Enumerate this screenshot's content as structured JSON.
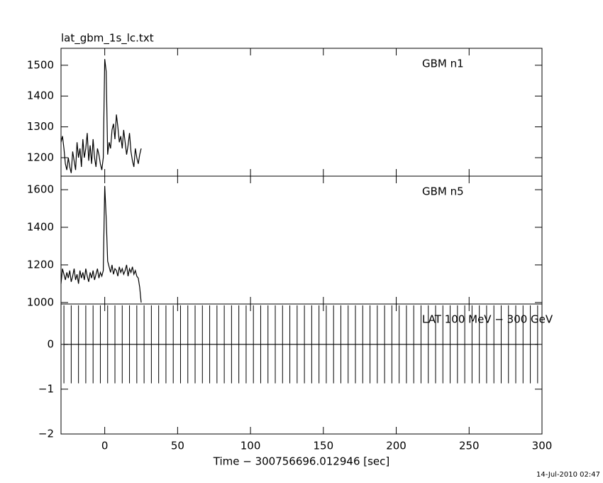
{
  "timestamp": "14-Jul-2010 02:47",
  "chart_data": [
    {
      "type": "line",
      "title": "lat_gbm_1s_lc.txt",
      "xlim": [
        -30,
        300
      ],
      "xticks": [
        0,
        50,
        100,
        150,
        200,
        250,
        300
      ],
      "ylim": [
        1140,
        1555
      ],
      "yticks": [
        1200,
        1300,
        1400,
        1500
      ],
      "x": [
        -30,
        -29,
        -28,
        -27,
        -26,
        -25,
        -24,
        -23,
        -22,
        -21,
        -20,
        -19,
        -18,
        -17,
        -16,
        -15,
        -14,
        -13,
        -12,
        -11,
        -10,
        -9,
        -8,
        -7,
        -6,
        -5,
        -4,
        -3,
        -2,
        -1,
        0,
        1,
        2,
        3,
        4,
        5,
        6,
        7,
        8,
        9,
        10,
        11,
        12,
        13,
        14,
        15,
        16,
        17,
        18,
        19,
        20,
        21,
        22,
        23,
        24,
        25
      ],
      "series": [
        {
          "name": "GBM n1",
          "color": "#000000",
          "values": [
            1250,
            1270,
            1230,
            1180,
            1160,
            1200,
            1170,
            1150,
            1220,
            1190,
            1160,
            1250,
            1200,
            1230,
            1170,
            1260,
            1200,
            1230,
            1280,
            1190,
            1240,
            1180,
            1260,
            1200,
            1170,
            1230,
            1210,
            1180,
            1160,
            1200,
            1520,
            1480,
            1210,
            1250,
            1230,
            1290,
            1310,
            1260,
            1340,
            1300,
            1250,
            1270,
            1230,
            1290,
            1250,
            1210,
            1240,
            1280,
            1220,
            1190,
            1170,
            1230,
            1200,
            1180,
            1210,
            1230
          ]
        }
      ]
    },
    {
      "type": "line",
      "xlim": [
        -30,
        300
      ],
      "xticks": [
        0,
        50,
        100,
        150,
        200,
        250,
        300
      ],
      "ylim": [
        992,
        1672
      ],
      "yticks": [
        1000,
        1200,
        1400,
        1600
      ],
      "x": [
        -30,
        -29,
        -28,
        -27,
        -26,
        -25,
        -24,
        -23,
        -22,
        -21,
        -20,
        -19,
        -18,
        -17,
        -16,
        -15,
        -14,
        -13,
        -12,
        -11,
        -10,
        -9,
        -8,
        -7,
        -6,
        -5,
        -4,
        -3,
        -2,
        -1,
        0,
        1,
        2,
        3,
        4,
        5,
        6,
        7,
        8,
        9,
        10,
        11,
        12,
        13,
        14,
        15,
        16,
        17,
        18,
        19,
        20,
        21,
        22,
        23,
        24,
        25
      ],
      "series": [
        {
          "name": "GBM n5",
          "color": "#000000",
          "values": [
            1100,
            1180,
            1150,
            1120,
            1160,
            1130,
            1170,
            1110,
            1140,
            1180,
            1120,
            1150,
            1100,
            1170,
            1130,
            1160,
            1120,
            1180,
            1140,
            1110,
            1160,
            1130,
            1170,
            1120,
            1150,
            1180,
            1130,
            1160,
            1140,
            1170,
            1620,
            1450,
            1220,
            1190,
            1160,
            1200,
            1150,
            1180,
            1170,
            1140,
            1190,
            1160,
            1180,
            1150,
            1170,
            1200,
            1140,
            1180,
            1160,
            1190,
            1150,
            1170,
            1140,
            1130,
            1080,
            1000
          ]
        }
      ]
    },
    {
      "type": "errorbar",
      "xlabel": "Time − 300756696.012946 [sec]",
      "xlim": [
        -30,
        300
      ],
      "xticks": [
        0,
        50,
        100,
        150,
        200,
        250,
        300
      ],
      "ylim": [
        -2,
        0.9
      ],
      "yticks": [
        {
          "value": -2,
          "label": "−2"
        },
        {
          "value": -1,
          "label": "−1"
        },
        0
      ],
      "x": [
        -28,
        -23,
        -18,
        -13,
        -8,
        -3,
        2,
        7,
        12,
        17,
        22,
        27,
        32,
        37,
        42,
        47,
        52,
        57,
        62,
        67,
        72,
        77,
        82,
        87,
        92,
        97,
        102,
        107,
        112,
        117,
        122,
        127,
        132,
        137,
        142,
        147,
        152,
        157,
        162,
        167,
        172,
        177,
        182,
        187,
        192,
        197,
        202,
        207,
        212,
        217,
        222,
        227,
        232,
        237,
        242,
        247,
        252,
        257,
        262,
        267,
        272,
        277,
        282,
        287,
        292,
        297
      ],
      "series": [
        {
          "name": "LAT 100 MeV − 300 GeV",
          "color": "#000000",
          "values": [
            0,
            0,
            0,
            0,
            0,
            0,
            0,
            0,
            0,
            0,
            0,
            0,
            0,
            0,
            0,
            0,
            0,
            0,
            0,
            0,
            0,
            0,
            0,
            0,
            0,
            0,
            0,
            0,
            0,
            0,
            0,
            0,
            0,
            0,
            0,
            0,
            0,
            0,
            0,
            0,
            0,
            0,
            0,
            0,
            0,
            0,
            0,
            0,
            0,
            0,
            0,
            0,
            0,
            0,
            0,
            0,
            0,
            0,
            0,
            0,
            0,
            0,
            0,
            0,
            0,
            0
          ],
          "errors": [
            0.87,
            0.87,
            0.87,
            0.87,
            0.87,
            0.87,
            0.87,
            0.87,
            0.87,
            0.87,
            0.87,
            0.87,
            0.87,
            0.87,
            0.87,
            0.87,
            0.87,
            0.87,
            0.87,
            0.87,
            0.87,
            0.87,
            0.87,
            0.87,
            0.87,
            0.87,
            0.87,
            0.87,
            0.87,
            0.87,
            0.87,
            0.87,
            0.87,
            0.87,
            0.87,
            0.87,
            0.87,
            0.87,
            0.87,
            0.87,
            0.87,
            0.87,
            0.87,
            0.87,
            0.87,
            0.87,
            0.87,
            0.87,
            0.87,
            0.87,
            0.87,
            0.87,
            0.87,
            0.87,
            0.87,
            0.87,
            0.87,
            0.87,
            0.87,
            0.87,
            0.87,
            0.87,
            0.87,
            0.87,
            0.87,
            0.87
          ]
        }
      ]
    }
  ]
}
